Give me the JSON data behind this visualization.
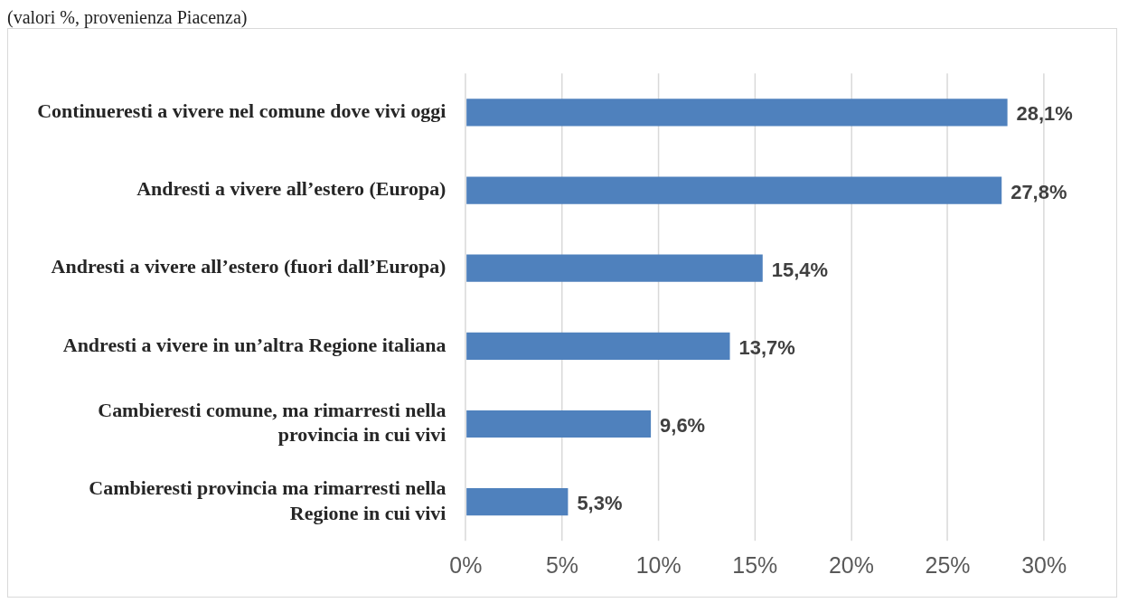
{
  "chart_data": {
    "type": "bar",
    "orientation": "horizontal",
    "subtitle": "(valori %, provenienza Piacenza)",
    "categories": [
      "Continueresti a vivere nel comune dove vivi oggi",
      "Andresti a vivere all’estero (Europa)",
      "Andresti a vivere all’estero (fuori dall’Europa)",
      "Andresti a vivere in un’altra Regione italiana",
      "Cambieresti comune, ma rimarresti nella provincia in cui vivi",
      "Cambieresti provincia ma rimarresti nella Regione in cui vivi"
    ],
    "values": [
      28.1,
      27.8,
      15.4,
      13.7,
      9.6,
      5.3
    ],
    "value_labels": [
      "28,1%",
      "27,8%",
      "15,4%",
      "13,7%",
      "9,6%",
      "5,3%"
    ],
    "color": "#4f81bd",
    "xlim": [
      0,
      30
    ],
    "xticks": [
      {
        "value": 0,
        "label": "0%"
      },
      {
        "value": 5,
        "label": "5%"
      },
      {
        "value": 10,
        "label": "10%"
      },
      {
        "value": 15,
        "label": "15%"
      },
      {
        "value": 20,
        "label": "20%"
      },
      {
        "value": 25,
        "label": "25%"
      },
      {
        "value": 30,
        "label": "30%"
      }
    ],
    "grid": "x"
  }
}
